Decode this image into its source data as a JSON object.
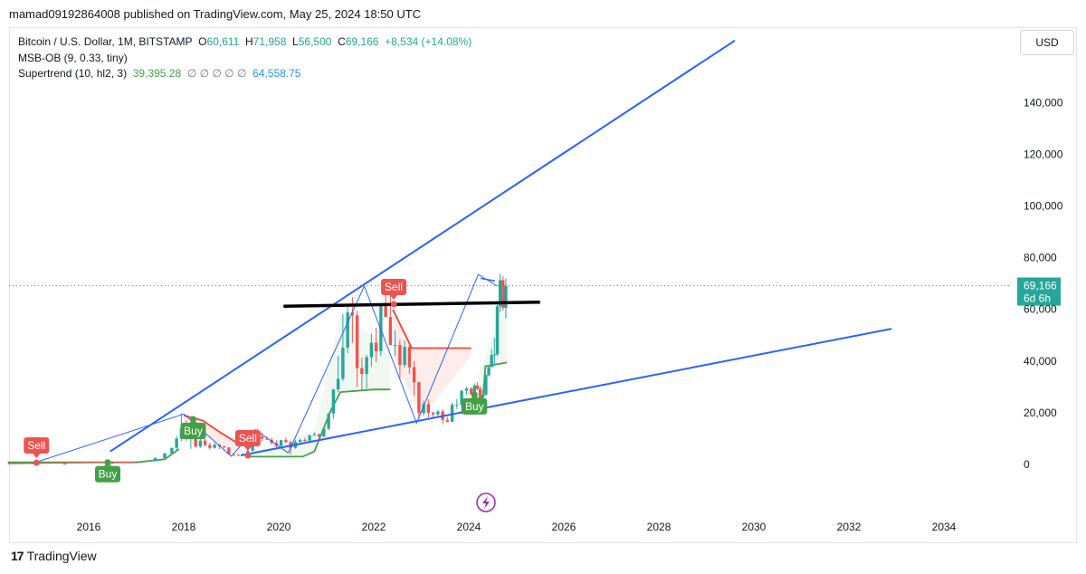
{
  "header": {
    "publish_text": "mamad09192864008 published on TradingView.com, May 25, 2024 18:50 UTC"
  },
  "legend": {
    "symbol": "Bitcoin / U.S. Dollar, 1M, BITSTAMP",
    "o_label": "O",
    "o_value": "60,611",
    "h_label": "H",
    "h_value": "71,958",
    "l_label": "L",
    "l_value": "56,500",
    "c_label": "C",
    "c_value": "69,166",
    "change": "+8,534 (+14.08%)",
    "indicator1": "MSB-OB (9, 0.33, tiny)",
    "indicator2_name": "Supertrend (10, hl2, 3)",
    "indicator2_value1": "39,395.28",
    "indicator2_empty": "∅ ∅ ∅ ∅ ∅",
    "indicator2_value2": "64,558.75"
  },
  "currency_button": "USD",
  "price_tag": {
    "price": "69,166",
    "countdown": "6d 6h"
  },
  "footer": {
    "logo_mark": "17",
    "logo_text": "TradingView"
  },
  "colors": {
    "up": "#26a69a",
    "down": "#ef5350",
    "trend_line": "#2962ff",
    "supertrend_up": "#43a047",
    "supertrend_down": "#f44336",
    "black_line": "#000000"
  },
  "chart_data": {
    "type": "candlestick",
    "title": "Bitcoin / U.S. Dollar, 1M, BITSTAMP",
    "x_axis": {
      "ticks": [
        "2016",
        "2018",
        "2020",
        "2022",
        "2024",
        "2026",
        "2028",
        "2030",
        "2032",
        "2034"
      ]
    },
    "y_axis": {
      "ticks": [
        "0",
        "20,000",
        "40,000",
        "60,000",
        "80,000",
        "100,000",
        "120,000",
        "140,000"
      ],
      "range": [
        -23000,
        166000
      ]
    },
    "grid": false,
    "last_price": 69166,
    "candles_approx": [
      {
        "t": 2014.9,
        "o": 380,
        "h": 420,
        "l": 300,
        "c": 320
      },
      {
        "t": 2015.5,
        "o": 260,
        "h": 300,
        "l": 200,
        "c": 280
      },
      {
        "t": 2016.5,
        "o": 600,
        "h": 700,
        "l": 550,
        "c": 650
      },
      {
        "t": 2017.0,
        "o": 1000,
        "h": 1200,
        "l": 900,
        "c": 1100
      },
      {
        "t": 2017.4,
        "o": 1300,
        "h": 2800,
        "l": 1200,
        "c": 2500
      },
      {
        "t": 2017.6,
        "o": 2500,
        "h": 4500,
        "l": 2400,
        "c": 4300
      },
      {
        "t": 2017.75,
        "o": 4300,
        "h": 6500,
        "l": 4000,
        "c": 6400
      },
      {
        "t": 2017.85,
        "o": 6400,
        "h": 11000,
        "l": 5500,
        "c": 10000
      },
      {
        "t": 2017.95,
        "o": 10000,
        "h": 19700,
        "l": 9000,
        "c": 14000
      },
      {
        "t": 2018.05,
        "o": 14000,
        "h": 17000,
        "l": 9000,
        "c": 10200
      },
      {
        "t": 2018.15,
        "o": 10200,
        "h": 11800,
        "l": 6000,
        "c": 10300
      },
      {
        "t": 2018.25,
        "o": 10300,
        "h": 11000,
        "l": 6500,
        "c": 6900
      },
      {
        "t": 2018.35,
        "o": 6900,
        "h": 9800,
        "l": 6500,
        "c": 9200
      },
      {
        "t": 2018.45,
        "o": 9200,
        "h": 9900,
        "l": 7000,
        "c": 7500
      },
      {
        "t": 2018.55,
        "o": 7500,
        "h": 8500,
        "l": 5800,
        "c": 6400
      },
      {
        "t": 2018.65,
        "o": 6400,
        "h": 8500,
        "l": 6100,
        "c": 7700
      },
      {
        "t": 2018.75,
        "o": 7700,
        "h": 7800,
        "l": 5900,
        "c": 7000
      },
      {
        "t": 2018.85,
        "o": 7000,
        "h": 7400,
        "l": 6200,
        "c": 6600
      },
      {
        "t": 2018.95,
        "o": 6600,
        "h": 6700,
        "l": 3700,
        "c": 4000
      },
      {
        "t": 2019.05,
        "o": 4000,
        "h": 4200,
        "l": 3200,
        "c": 3700
      },
      {
        "t": 2019.15,
        "o": 3700,
        "h": 4100,
        "l": 3400,
        "c": 3400
      },
      {
        "t": 2019.25,
        "o": 3400,
        "h": 4100,
        "l": 3400,
        "c": 4100
      },
      {
        "t": 2019.35,
        "o": 4100,
        "h": 5600,
        "l": 4000,
        "c": 5300
      },
      {
        "t": 2019.45,
        "o": 5300,
        "h": 9000,
        "l": 5300,
        "c": 8500
      },
      {
        "t": 2019.55,
        "o": 8500,
        "h": 13800,
        "l": 7500,
        "c": 10800
      },
      {
        "t": 2019.65,
        "o": 10800,
        "h": 12300,
        "l": 9100,
        "c": 10000
      },
      {
        "t": 2019.75,
        "o": 10000,
        "h": 10900,
        "l": 9400,
        "c": 9600
      },
      {
        "t": 2019.85,
        "o": 9600,
        "h": 10300,
        "l": 7700,
        "c": 8300
      },
      {
        "t": 2019.95,
        "o": 8300,
        "h": 9400,
        "l": 6500,
        "c": 7200
      },
      {
        "t": 2020.05,
        "o": 7200,
        "h": 9600,
        "l": 6900,
        "c": 9400
      },
      {
        "t": 2020.15,
        "o": 9400,
        "h": 10500,
        "l": 8400,
        "c": 8600
      },
      {
        "t": 2020.25,
        "o": 8600,
        "h": 9200,
        "l": 3800,
        "c": 6400
      },
      {
        "t": 2020.35,
        "o": 6400,
        "h": 9400,
        "l": 6100,
        "c": 8700
      },
      {
        "t": 2020.45,
        "o": 8700,
        "h": 10000,
        "l": 8600,
        "c": 9400
      },
      {
        "t": 2020.55,
        "o": 9400,
        "h": 10300,
        "l": 8900,
        "c": 9200
      },
      {
        "t": 2020.65,
        "o": 9200,
        "h": 11400,
        "l": 9000,
        "c": 11300
      },
      {
        "t": 2020.75,
        "o": 11300,
        "h": 12400,
        "l": 11100,
        "c": 11600
      },
      {
        "t": 2020.85,
        "o": 11600,
        "h": 12000,
        "l": 9900,
        "c": 10800
      },
      {
        "t": 2020.95,
        "o": 10800,
        "h": 14000,
        "l": 10500,
        "c": 13800
      },
      {
        "t": 2021.05,
        "o": 13800,
        "h": 19900,
        "l": 13200,
        "c": 19700
      },
      {
        "t": 2021.15,
        "o": 19700,
        "h": 29300,
        "l": 17600,
        "c": 29000
      },
      {
        "t": 2021.25,
        "o": 29000,
        "h": 42000,
        "l": 28000,
        "c": 33100
      },
      {
        "t": 2021.35,
        "o": 33100,
        "h": 58300,
        "l": 32400,
        "c": 45200
      },
      {
        "t": 2021.45,
        "o": 45200,
        "h": 61800,
        "l": 43000,
        "c": 58800
      },
      {
        "t": 2021.55,
        "o": 58800,
        "h": 64800,
        "l": 47000,
        "c": 57700
      },
      {
        "t": 2021.65,
        "o": 57700,
        "h": 59500,
        "l": 30000,
        "c": 37300
      },
      {
        "t": 2021.75,
        "o": 37300,
        "h": 41300,
        "l": 28800,
        "c": 35000
      },
      {
        "t": 2021.85,
        "o": 35000,
        "h": 42400,
        "l": 29300,
        "c": 41500
      },
      {
        "t": 2021.95,
        "o": 41500,
        "h": 50500,
        "l": 37700,
        "c": 47100
      },
      {
        "t": 2022.05,
        "o": 47100,
        "h": 52900,
        "l": 39600,
        "c": 43800
      },
      {
        "t": 2022.15,
        "o": 43800,
        "h": 55000,
        "l": 42000,
        "c": 61300
      },
      {
        "t": 2022.25,
        "o": 61300,
        "h": 67000,
        "l": 59500,
        "c": 57000
      },
      {
        "t": 2022.35,
        "o": 57000,
        "h": 69000,
        "l": 53000,
        "c": 46200
      },
      {
        "t": 2022.45,
        "o": 46200,
        "h": 51900,
        "l": 42000,
        "c": 46200
      },
      {
        "t": 2022.55,
        "o": 46200,
        "h": 48200,
        "l": 33000,
        "c": 38500
      },
      {
        "t": 2022.65,
        "o": 38500,
        "h": 48000,
        "l": 37400,
        "c": 45500
      },
      {
        "t": 2022.75,
        "o": 45500,
        "h": 47000,
        "l": 35000,
        "c": 37600
      },
      {
        "t": 2022.85,
        "o": 37600,
        "h": 40000,
        "l": 26700,
        "c": 31800
      },
      {
        "t": 2022.95,
        "o": 31800,
        "h": 32000,
        "l": 17600,
        "c": 19900
      },
      {
        "t": 2023.05,
        "o": 19900,
        "h": 24700,
        "l": 18900,
        "c": 23300
      },
      {
        "t": 2023.15,
        "o": 23300,
        "h": 25200,
        "l": 18100,
        "c": 20000
      },
      {
        "t": 2023.25,
        "o": 20000,
        "h": 20500,
        "l": 18100,
        "c": 19400
      },
      {
        "t": 2023.35,
        "o": 19400,
        "h": 21000,
        "l": 18200,
        "c": 20500
      },
      {
        "t": 2023.45,
        "o": 20500,
        "h": 21400,
        "l": 15500,
        "c": 17200
      },
      {
        "t": 2023.55,
        "o": 17200,
        "h": 18400,
        "l": 16300,
        "c": 16500
      },
      {
        "t": 2023.65,
        "o": 16500,
        "h": 23900,
        "l": 16500,
        "c": 23100
      },
      {
        "t": 2023.75,
        "o": 23100,
        "h": 25300,
        "l": 21400,
        "c": 23100
      },
      {
        "t": 2023.85,
        "o": 23100,
        "h": 28900,
        "l": 19500,
        "c": 28500
      },
      {
        "t": 2023.95,
        "o": 28500,
        "h": 30100,
        "l": 26900,
        "c": 29300
      },
      {
        "t": 2024.05,
        "o": 29300,
        "h": 29800,
        "l": 26800,
        "c": 27200
      },
      {
        "t": 2024.12,
        "o": 27200,
        "h": 31400,
        "l": 24800,
        "c": 30500
      },
      {
        "t": 2024.18,
        "o": 30500,
        "h": 31800,
        "l": 28900,
        "c": 29200
      },
      {
        "t": 2024.24,
        "o": 29200,
        "h": 30200,
        "l": 25000,
        "c": 26000
      },
      {
        "t": 2024.3,
        "o": 26000,
        "h": 28600,
        "l": 24900,
        "c": 27000
      },
      {
        "t": 2024.36,
        "o": 27000,
        "h": 35000,
        "l": 26600,
        "c": 34500
      },
      {
        "t": 2024.42,
        "o": 34500,
        "h": 38000,
        "l": 34000,
        "c": 37700
      },
      {
        "t": 2024.48,
        "o": 37700,
        "h": 44700,
        "l": 37600,
        "c": 42300
      },
      {
        "t": 2024.54,
        "o": 42300,
        "h": 48900,
        "l": 38500,
        "c": 42600
      },
      {
        "t": 2024.6,
        "o": 42600,
        "h": 63000,
        "l": 42000,
        "c": 61200
      },
      {
        "t": 2024.66,
        "o": 61200,
        "h": 73800,
        "l": 59000,
        "c": 71300
      },
      {
        "t": 2024.72,
        "o": 71300,
        "h": 72800,
        "l": 59600,
        "c": 60600
      },
      {
        "t": 2024.78,
        "o": 60600,
        "h": 71958,
        "l": 56500,
        "c": 69166
      }
    ],
    "annotations": [
      {
        "type": "label",
        "text": "Sell",
        "kind": "sell"
      },
      {
        "type": "label",
        "text": "Buy",
        "kind": "buy"
      },
      {
        "type": "label",
        "text": "Buy",
        "kind": "buy"
      },
      {
        "type": "label",
        "text": "Sell",
        "kind": "sell"
      },
      {
        "type": "label",
        "text": "Sell",
        "kind": "sell"
      },
      {
        "type": "label",
        "text": "Buy",
        "kind": "buy"
      }
    ]
  }
}
